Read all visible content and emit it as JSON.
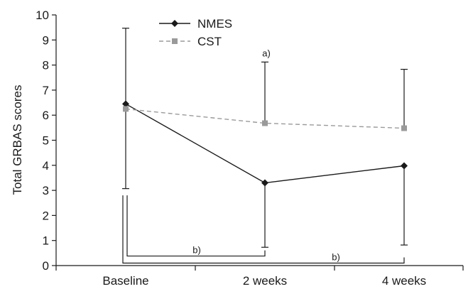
{
  "chart_data": {
    "type": "line",
    "title": "",
    "xlabel": "",
    "ylabel": "Total GRBAS scores",
    "categories": [
      "Baseline",
      "2 weeks",
      "4 weeks"
    ],
    "ylim": [
      0,
      10
    ],
    "yticks": [
      0,
      1,
      2,
      3,
      4,
      5,
      6,
      7,
      8,
      9,
      10
    ],
    "grid": false,
    "legend_position": "top-left",
    "series": [
      {
        "name": "NMES",
        "values": [
          6.45,
          3.3,
          3.98
        ],
        "error_upper": [
          9.47,
          3.3,
          3.98
        ],
        "error_lower": [
          3.07,
          0.73,
          0.82
        ],
        "color": "#1a1a1a",
        "line_style": "solid",
        "marker": "diamond"
      },
      {
        "name": "CST",
        "values": [
          6.25,
          5.68,
          5.48
        ],
        "error_upper": [
          6.25,
          8.12,
          7.83
        ],
        "error_lower": [
          6.25,
          5.68,
          5.48
        ],
        "color": "#9a9a9a",
        "line_style": "dashed",
        "marker": "square"
      }
    ],
    "annotations": [
      {
        "text": "a)",
        "category_index": 1,
        "y": 8.45
      }
    ],
    "brackets": [
      {
        "text": "b)",
        "from": 0,
        "to": 1,
        "level": 0.38
      },
      {
        "text": "b)",
        "from": 0,
        "to": 2,
        "level": 0.1
      }
    ]
  }
}
